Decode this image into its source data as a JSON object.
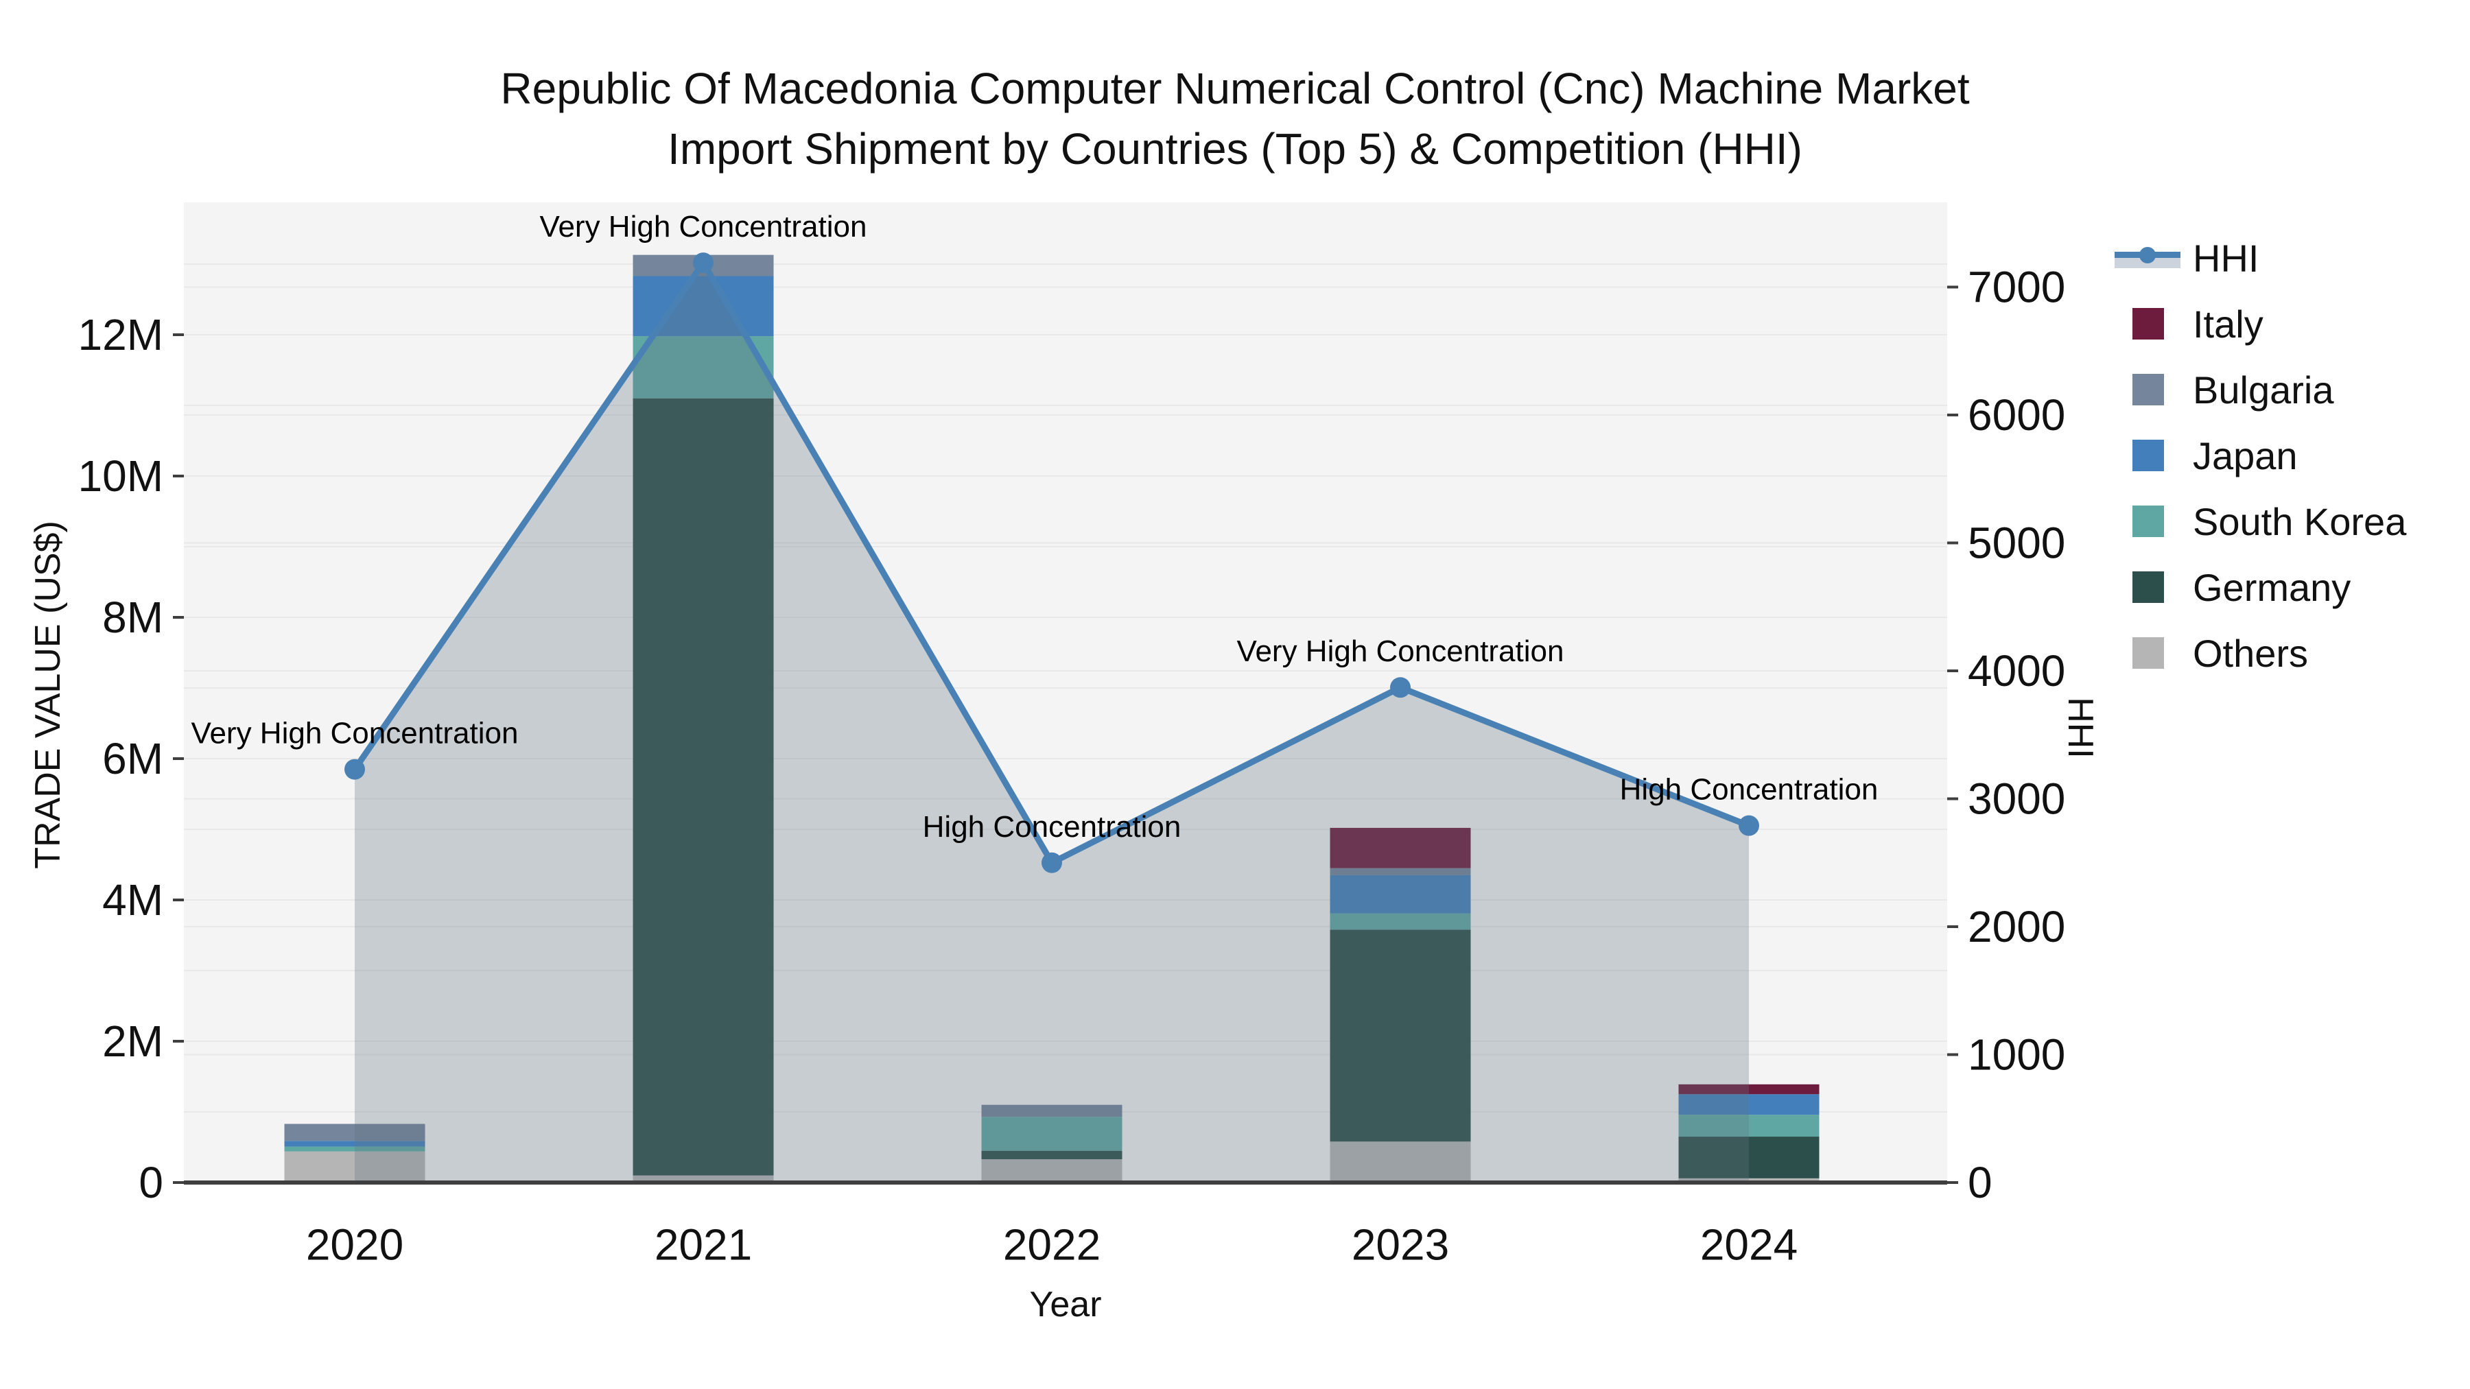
{
  "title": {
    "line1": "Republic Of Macedonia Computer Numerical Control (Cnc) Machine Market",
    "line2": "Import Shipment by Countries (Top 5) & Competition (HHI)"
  },
  "axes": {
    "x": {
      "title": "Year",
      "ticks": [
        "2020",
        "2021",
        "2022",
        "2023",
        "2024"
      ]
    },
    "left": {
      "title": "TRADE VALUE (US$)",
      "ticks": [
        "0",
        "2M",
        "4M",
        "6M",
        "8M",
        "10M",
        "12M"
      ],
      "tick_values_musd": [
        0,
        2,
        4,
        6,
        8,
        10,
        12
      ],
      "max_musd": 13.87
    },
    "right": {
      "title": "HHI",
      "ticks": [
        "0",
        "1000",
        "2000",
        "3000",
        "4000",
        "5000",
        "6000",
        "7000"
      ],
      "tick_values": [
        0,
        1000,
        2000,
        3000,
        4000,
        5000,
        6000,
        7000
      ],
      "max": 7660
    }
  },
  "chart_data": {
    "type": "combo_stacked_bar_line_area",
    "x": [
      2020,
      2021,
      2022,
      2023,
      2024
    ],
    "bar_unit": "million US$",
    "series": [
      {
        "name": "Others",
        "color": "#b5b5b5",
        "values": [
          0.44,
          0.1,
          0.33,
          0.58,
          0.06
        ]
      },
      {
        "name": "Germany",
        "color": "#2d4f4b",
        "values": [
          0.0,
          11.0,
          0.12,
          3.0,
          0.59
        ]
      },
      {
        "name": "South Korea",
        "color": "#5fa7a3",
        "values": [
          0.07,
          0.88,
          0.48,
          0.23,
          0.31
        ]
      },
      {
        "name": "Japan",
        "color": "#4380bb",
        "values": [
          0.08,
          0.85,
          0.0,
          0.54,
          0.29
        ]
      },
      {
        "name": "Bulgaria",
        "color": "#75859b",
        "values": [
          0.24,
          0.3,
          0.17,
          0.1,
          0.0
        ]
      },
      {
        "name": "Italy",
        "color": "#6d1c3e",
        "values": [
          0.0,
          0.0,
          0.0,
          0.57,
          0.14
        ]
      }
    ],
    "line": {
      "name": "HHI",
      "color": "#4a81b4",
      "area_overlay": "rgba(100,115,130,0.30)",
      "values": [
        3230,
        7190,
        2500,
        3870,
        2790
      ]
    },
    "annotations": [
      {
        "x": 2020,
        "text": "Very High Concentration"
      },
      {
        "x": 2021,
        "text": "Very High Concentration"
      },
      {
        "x": 2022,
        "text": "High Concentration"
      },
      {
        "x": 2023,
        "text": "Very High Concentration"
      },
      {
        "x": 2024,
        "text": "High Concentration"
      }
    ],
    "legend_position": "right",
    "grid": true
  },
  "legend": {
    "items": [
      {
        "label": "HHI",
        "type": "line",
        "color": "#4a81b4"
      },
      {
        "label": "Italy",
        "type": "box",
        "color": "#6d1c3e"
      },
      {
        "label": "Bulgaria",
        "type": "box",
        "color": "#75859b"
      },
      {
        "label": "Japan",
        "type": "box",
        "color": "#4380bb"
      },
      {
        "label": "South Korea",
        "type": "box",
        "color": "#5fa7a3"
      },
      {
        "label": "Germany",
        "type": "box",
        "color": "#2d4f4b"
      },
      {
        "label": "Others",
        "type": "box",
        "color": "#b5b5b5"
      }
    ]
  },
  "colors": {
    "plot_bg": "#f4f4f4",
    "grid": "#e8e8e8",
    "axis_line": "#3f3f3f",
    "text": "#111111"
  }
}
